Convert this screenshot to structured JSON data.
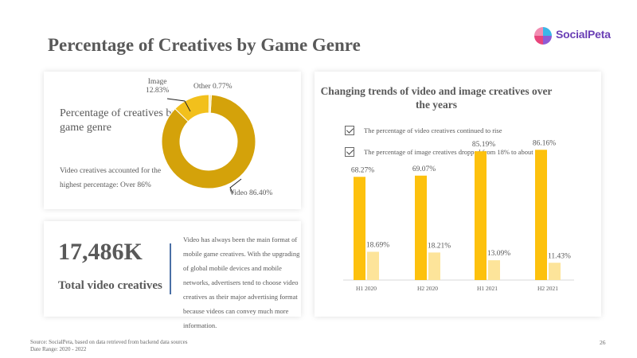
{
  "page": {
    "title": "Percentage of Creatives by Game Genre",
    "logo_text": "SocialPeta",
    "source_line": "Source: SocialPeta, based on data retrieved from backend data sources",
    "date_range": "Date Range: 2020 - 2022",
    "page_number": "26"
  },
  "donut_card": {
    "heading": "Percentage of creatives by game genre",
    "note": "Video creatives accounted for the highest percentage: Over 86%"
  },
  "total_card": {
    "value": "17,486K",
    "label": "Total video creatives",
    "description": "Video has always been the main format of mobile game creatives. With the upgrading of global mobile devices and mobile networks, advertisers tend to choose video creatives as their major advertising format because videos can convey much more information."
  },
  "bars_card": {
    "title": "Changing trends of video and image creatives over the years",
    "checks": [
      "The percentage of video creatives continued to rise",
      "The percentage of image creatives dropped from 18% to about 12%"
    ]
  },
  "colors": {
    "video_donut": "#d4a20a",
    "image_donut": "#f2c01c",
    "other_donut": "#fbe9a8",
    "video_bar": "#fdc10d",
    "image_bar": "#fde49a"
  },
  "chart_data": [
    {
      "type": "pie",
      "labels": [
        "Video",
        "Image",
        "Other"
      ],
      "values": [
        86.4,
        12.83,
        0.77
      ],
      "label_text": [
        "Video 86.40%",
        "Image\n12.83%",
        "Other 0.77%"
      ]
    },
    {
      "type": "bar",
      "categories": [
        "H1 2020",
        "H2 2020",
        "H1 2021",
        "H2 2021"
      ],
      "series": [
        {
          "values": [
            68.27,
            69.07,
            85.19,
            86.16
          ],
          "labels": [
            "68.27%",
            "69.07%",
            "85.19%",
            "86.16%"
          ]
        },
        {
          "values": [
            18.69,
            18.21,
            13.09,
            11.43
          ],
          "labels": [
            "18.69%",
            "18.21%",
            "13.09%",
            "11.43%"
          ]
        }
      ],
      "ylim": [
        0,
        100
      ]
    }
  ]
}
